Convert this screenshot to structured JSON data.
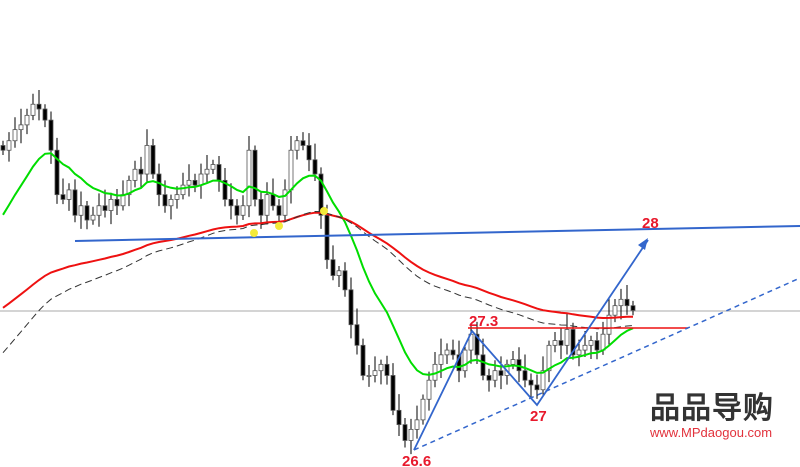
{
  "chart_data": {
    "type": "candlestick",
    "title": "",
    "closes": [
      28.49,
      28.55,
      28.62,
      28.65,
      28.71,
      28.78,
      28.75,
      28.68,
      28.49,
      28.21,
      28.18,
      28.24,
      28.08,
      28.14,
      28.05,
      28.08,
      28.14,
      28.11,
      28.18,
      28.14,
      28.21,
      28.3,
      28.37,
      28.34,
      28.52,
      28.34,
      28.21,
      28.14,
      28.18,
      28.21,
      28.27,
      28.3,
      28.27,
      28.34,
      28.37,
      28.4,
      28.3,
      28.18,
      28.14,
      28.08,
      28.14,
      28.49,
      28.18,
      28.08,
      28.21,
      28.14,
      28.08,
      28.24,
      28.49,
      28.55,
      28.52,
      28.43,
      28.34,
      28.08,
      27.8,
      27.7,
      27.73,
      27.61,
      27.39,
      27.26,
      27.07,
      27.07,
      27.1,
      27.14,
      27.07,
      26.85,
      26.76,
      26.66,
      26.73,
      26.79,
      26.92,
      27.04,
      27.14,
      27.2,
      27.23,
      27.2,
      27.1,
      27.23,
      27.33,
      27.2,
      27.07,
      27.04,
      27.1,
      27.07,
      27.14,
      27.17,
      27.1,
      27.04,
      27.01,
      26.98,
      27.1,
      27.26,
      27.29,
      27.26,
      27.36,
      27.2,
      27.23,
      27.26,
      27.29,
      27.23,
      27.33,
      27.45,
      27.51,
      27.55,
      27.51,
      27.48
    ],
    "moving_averages": [
      {
        "color": "#00dd00",
        "style": "solid"
      },
      {
        "color": "#ee1111",
        "style": "solid"
      },
      {
        "color": "#333333",
        "style": "dashed"
      }
    ],
    "annotations": [
      {
        "text": "26.6",
        "price": 26.6,
        "color": "#e8192c"
      },
      {
        "text": "27.3",
        "price": 27.3,
        "color": "#e8192c"
      },
      {
        "text": "27",
        "price": 27.0,
        "color": "#e8192c"
      },
      {
        "text": "28",
        "price": 28.0,
        "color": "#e8192c"
      }
    ],
    "colors": {
      "trendline": "#3366cc",
      "resistance": "#ee1111",
      "price_line": "#a0a0a0",
      "candle": "#000000"
    },
    "grid": false
  },
  "watermark": {
    "brand": "品品导购",
    "url": "www.MPdaogou.com"
  }
}
